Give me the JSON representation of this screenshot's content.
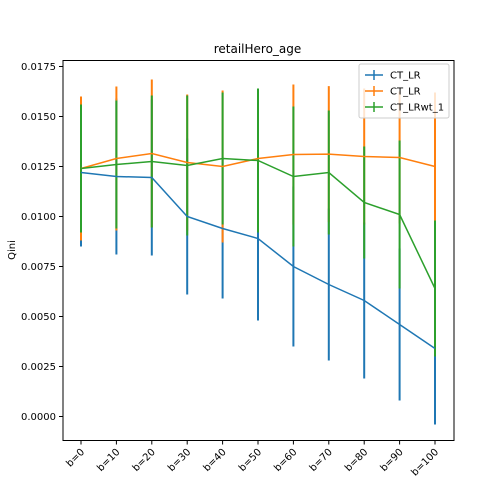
{
  "chart_data": {
    "type": "line",
    "title": "retailHero_age",
    "xlabel": "",
    "ylabel": "Qini",
    "categories": [
      "b=0",
      "b=10",
      "b=20",
      "b=30",
      "b=40",
      "b=50",
      "b=60",
      "b=70",
      "b=80",
      "b=90",
      "b=100"
    ],
    "ylim": [
      -0.0012,
      0.0178
    ],
    "yticks": [
      "0.0000",
      "0.0025",
      "0.0050",
      "0.0075",
      "0.0100",
      "0.0125",
      "0.0150",
      "0.0175"
    ],
    "legend_position": "top-right",
    "series": [
      {
        "name": "CT_LR",
        "color": "#1f77b4",
        "values": [
          0.0122,
          0.012,
          0.01195,
          0.01,
          0.0094,
          0.0089,
          0.0075,
          0.0066,
          0.0058,
          0.0046,
          0.0034
        ],
        "errors": [
          0.0037,
          0.0039,
          0.0039,
          0.0039,
          0.0035,
          0.0041,
          0.004,
          0.0038,
          0.0039,
          0.0038,
          0.0038
        ]
      },
      {
        "name": "CT_LR",
        "color": "#ff7f0e",
        "values": [
          0.0124,
          0.0129,
          0.01315,
          0.0127,
          0.0125,
          0.0129,
          0.0131,
          0.01312,
          0.013,
          0.01295,
          0.0125
        ],
        "errors": [
          0.0036,
          0.0036,
          0.0037,
          0.0034,
          0.0038,
          0.0035,
          0.0035,
          0.0034,
          0.0034,
          0.0033,
          0.0037
        ]
      },
      {
        "name": "CT_LRwt_1",
        "color": "#2ca02c",
        "values": [
          0.0124,
          0.0126,
          0.01275,
          0.01255,
          0.0129,
          0.0128,
          0.012,
          0.0122,
          0.0107,
          0.0101,
          0.0064
        ],
        "errors": [
          0.0032,
          0.0032,
          0.0033,
          0.0035,
          0.0033,
          0.0036,
          0.0035,
          0.0031,
          0.0028,
          0.0037,
          0.0034
        ]
      }
    ]
  }
}
